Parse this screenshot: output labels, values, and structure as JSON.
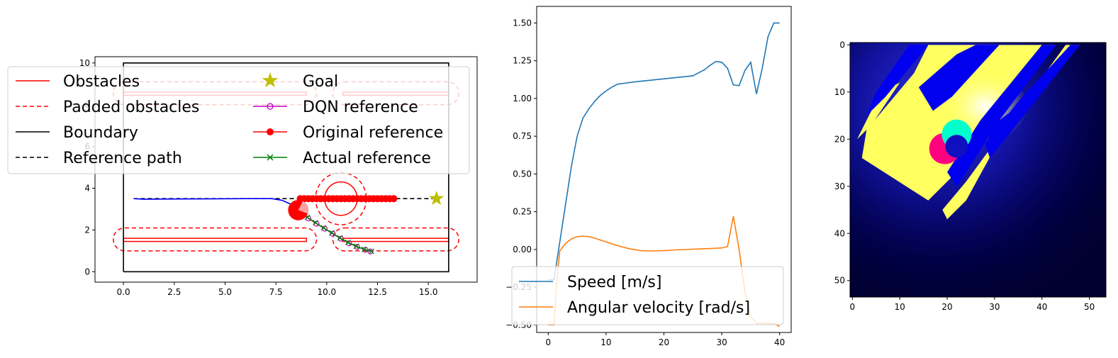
{
  "chart_data": [
    {
      "type": "line",
      "xlim": [
        -1.4,
        17.4
      ],
      "ylim": [
        -0.5,
        10.3
      ],
      "xticks": [
        0.0,
        2.5,
        5.0,
        7.5,
        10.0,
        12.5,
        15.0
      ],
      "xtick_labels": [
        "0.0",
        "2.5",
        "5.0",
        "7.5",
        "10.0",
        "12.5",
        "15.0"
      ],
      "yticks": [
        0,
        2,
        4,
        6,
        8,
        10
      ],
      "ytick_labels": [
        "0",
        "2",
        "4",
        "6",
        "8",
        "10"
      ],
      "legend": {
        "position": "upper-left",
        "entries": [
          "Obstacles",
          "Padded obstacles",
          "Boundary",
          "Reference path",
          "Goal",
          "DQN reference",
          "Original reference",
          "Actual reference"
        ]
      },
      "colors": {
        "obstacle": "#ff0000",
        "boundary": "#000000",
        "trajectory": "#0000ff",
        "goal": "#bfbf00",
        "dqn": "#bf00bf",
        "actual": "#008000",
        "robot": "#ff0000",
        "robot_light": "#ffa0a0"
      },
      "boundary": [
        [
          0,
          0
        ],
        [
          16,
          0
        ],
        [
          16,
          10
        ],
        [
          0,
          10
        ],
        [
          0,
          0
        ]
      ],
      "obstacles_rect": [
        {
          "x": [
            0,
            9
          ],
          "y": [
            1.45,
            1.6
          ]
        },
        {
          "x": [
            10.8,
            16
          ],
          "y": [
            1.45,
            1.6
          ]
        },
        {
          "x": [
            0,
            9
          ],
          "y": [
            8.45,
            8.6
          ]
        },
        {
          "x": [
            10.8,
            16
          ],
          "y": [
            8.45,
            8.6
          ]
        }
      ],
      "padded_obstacles": [
        {
          "x": [
            -0.5,
            9.5
          ],
          "y": [
            1.0,
            2.1
          ]
        },
        {
          "x": [
            10.3,
            16.5
          ],
          "y": [
            1.0,
            2.1
          ]
        },
        {
          "x": [
            -0.5,
            9.5
          ],
          "y": [
            8.0,
            9.1
          ]
        },
        {
          "x": [
            10.3,
            16.5
          ],
          "y": [
            8.0,
            9.1
          ]
        }
      ],
      "circle_obstacle": {
        "center": [
          10.7,
          3.5
        ],
        "radius": 0.8,
        "padded_radius": 1.25
      },
      "reference_path": [
        [
          0.5,
          3.5
        ],
        [
          15.4,
          3.5
        ]
      ],
      "goal": [
        15.4,
        3.5
      ],
      "trajectory": [
        [
          0.5,
          3.5
        ],
        [
          1.0,
          3.47
        ],
        [
          2.0,
          3.48
        ],
        [
          4.0,
          3.49
        ],
        [
          6.0,
          3.5
        ],
        [
          7.3,
          3.5
        ],
        [
          7.8,
          3.42
        ],
        [
          8.2,
          3.25
        ],
        [
          8.6,
          2.95
        ]
      ],
      "original_reference": {
        "x": [
          8.7,
          8.9,
          9.1,
          9.3,
          9.5,
          9.7,
          9.9,
          10.1,
          10.3,
          10.5,
          10.7,
          10.9,
          11.1,
          11.3,
          11.5,
          11.7,
          11.9,
          12.1,
          12.3,
          12.5,
          12.7,
          12.9,
          13.1,
          13.3
        ],
        "y": 3.5
      },
      "dqn_reference": [
        [
          9.1,
          2.55
        ],
        [
          9.5,
          2.3
        ],
        [
          9.9,
          2.06
        ],
        [
          10.3,
          1.82
        ],
        [
          10.7,
          1.58
        ],
        [
          11.1,
          1.36
        ],
        [
          11.5,
          1.19
        ],
        [
          11.9,
          1.05
        ],
        [
          12.15,
          0.97
        ]
      ],
      "actual_reference": [
        [
          9.05,
          2.6
        ],
        [
          9.45,
          2.35
        ],
        [
          9.85,
          2.1
        ],
        [
          10.25,
          1.86
        ],
        [
          10.65,
          1.62
        ],
        [
          11.05,
          1.4
        ],
        [
          11.45,
          1.22
        ],
        [
          11.85,
          1.07
        ],
        [
          12.2,
          0.98
        ]
      ],
      "robot": {
        "x": 8.6,
        "y": 2.95,
        "radius": 0.5
      }
    },
    {
      "type": "line",
      "xlim": [
        -2.0,
        42.0
      ],
      "ylim": [
        -0.55,
        1.61
      ],
      "xticks": [
        0,
        10,
        20,
        30,
        40
      ],
      "xtick_labels": [
        "0",
        "10",
        "20",
        "30",
        "40"
      ],
      "yticks": [
        -0.5,
        -0.25,
        0.0,
        0.25,
        0.5,
        0.75,
        1.0,
        1.25,
        1.5
      ],
      "ytick_labels": [
        "−0.50",
        "−0.25",
        "0.00",
        "0.25",
        "0.50",
        "0.75",
        "1.00",
        "1.25",
        "1.50"
      ],
      "legend": {
        "position": "lower-right"
      },
      "series": [
        {
          "name": "Speed [m/s]",
          "color": "#1f77b4",
          "x": [
            0,
            1,
            2,
            3,
            4,
            5,
            6,
            7,
            8,
            9,
            10,
            11,
            12,
            13,
            15,
            20,
            25,
            26,
            27,
            28,
            29,
            30,
            31,
            32,
            33,
            34,
            35,
            36,
            37,
            38,
            39,
            40
          ],
          "y": [
            -0.2,
            -0.2,
            0.05,
            0.3,
            0.55,
            0.75,
            0.87,
            0.93,
            0.98,
            1.02,
            1.05,
            1.075,
            1.095,
            1.1,
            1.11,
            1.13,
            1.15,
            1.17,
            1.19,
            1.22,
            1.245,
            1.24,
            1.2,
            1.09,
            1.085,
            1.185,
            1.24,
            1.03,
            1.2,
            1.41,
            1.5,
            1.5
          ]
        },
        {
          "name": "Angular velocity [rad/s]",
          "color": "#ff7f0e",
          "x": [
            0,
            1,
            1.5,
            2,
            3,
            4,
            5,
            6,
            7,
            8,
            10,
            12,
            14,
            16,
            18,
            20,
            22,
            24,
            26,
            28,
            30,
            31,
            32,
            33,
            34,
            35,
            36,
            37,
            38,
            39,
            40
          ],
          "y": [
            -0.5,
            -0.5,
            -0.2,
            -0.01,
            0.04,
            0.07,
            0.085,
            0.088,
            0.085,
            0.075,
            0.05,
            0.025,
            0.005,
            -0.008,
            -0.01,
            -0.008,
            -0.003,
            0.0,
            0.003,
            0.006,
            0.01,
            0.02,
            0.22,
            0.0,
            -0.28,
            -0.44,
            -0.49,
            -0.49,
            -0.49,
            -0.49,
            -0.51
          ]
        }
      ]
    },
    {
      "type": "heatmap",
      "xlim": [
        -0.5,
        53.5
      ],
      "ylim": [
        53.5,
        -0.5
      ],
      "xticks": [
        0,
        10,
        20,
        30,
        40,
        50
      ],
      "xtick_labels": [
        "0",
        "10",
        "20",
        "30",
        "40",
        "50"
      ],
      "yticks": [
        0,
        10,
        20,
        30,
        40,
        50
      ],
      "ytick_labels": [
        "0",
        "10",
        "20",
        "30",
        "40",
        "50"
      ],
      "background": "#000030",
      "colors": {
        "free": "#ffff60",
        "obstacle": "#0000ee",
        "glow": "#ffffff",
        "robot_magenta": "#ff0080",
        "robot_cyan": "#00ffcc"
      }
    }
  ]
}
